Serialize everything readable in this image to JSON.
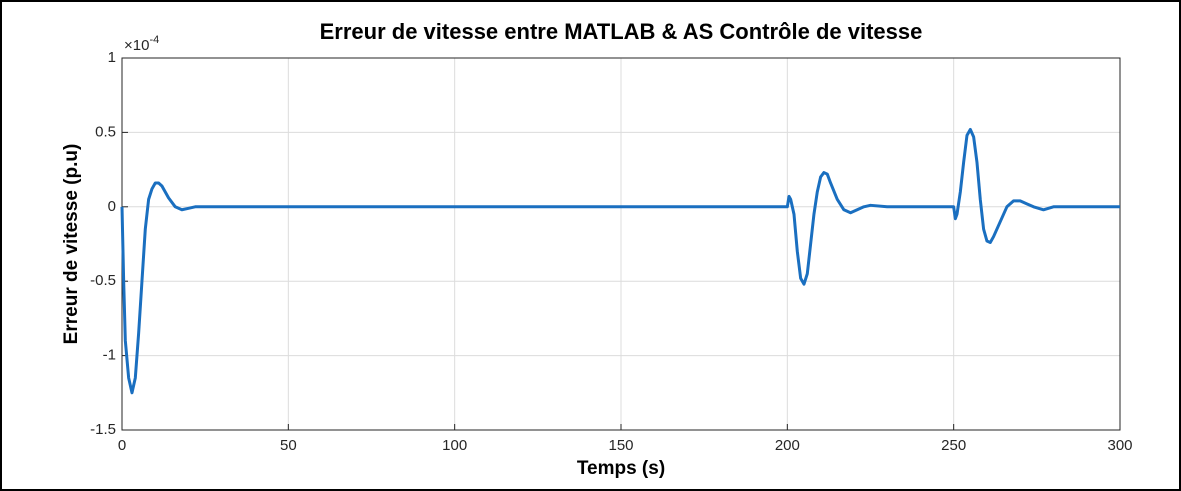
{
  "chart_data": {
    "type": "line",
    "title": "Erreur de vitesse entre MATLAB & AS Contrôle de vitesse",
    "x_label": "Temps (s)",
    "y_label": "Erreur de vitesse (p.u)",
    "y_multiplier": {
      "base": "×10",
      "power": "-4"
    },
    "xlim": [
      0,
      300
    ],
    "xticks": [
      0,
      50,
      100,
      150,
      200,
      250,
      300
    ],
    "ylim": [
      -1.5,
      1
    ],
    "yticks": [
      -1.5,
      -1,
      -0.5,
      0,
      0.5,
      1
    ],
    "grid": true,
    "series": [
      {
        "color": "#1a6fc0",
        "x": [
          0,
          0.5,
          1,
          2,
          3,
          4,
          5,
          6,
          7,
          8,
          9,
          10,
          11,
          12,
          14,
          16,
          18,
          20,
          22,
          200,
          200.5,
          201,
          202,
          203,
          204,
          205,
          206,
          207,
          208,
          209,
          210,
          211,
          212,
          213,
          215,
          217,
          219,
          221,
          223,
          225,
          230,
          250,
          250.5,
          251,
          252,
          253,
          254,
          255,
          256,
          257,
          258,
          259,
          260,
          261,
          262,
          264,
          266,
          268,
          270,
          272,
          274,
          277,
          280,
          300
        ],
        "values": [
          0,
          -0.5,
          -0.9,
          -1.15,
          -1.25,
          -1.15,
          -0.85,
          -0.5,
          -0.15,
          0.05,
          0.12,
          0.16,
          0.16,
          0.14,
          0.06,
          0,
          -0.02,
          -0.01,
          0,
          0,
          0.07,
          0.05,
          -0.05,
          -0.3,
          -0.48,
          -0.52,
          -0.45,
          -0.25,
          -0.05,
          0.1,
          0.2,
          0.23,
          0.22,
          0.16,
          0.05,
          -0.02,
          -0.04,
          -0.02,
          0,
          0.01,
          0,
          0,
          -0.08,
          -0.05,
          0.1,
          0.3,
          0.48,
          0.52,
          0.47,
          0.3,
          0.05,
          -0.15,
          -0.23,
          -0.24,
          -0.2,
          -0.1,
          0,
          0.04,
          0.04,
          0.02,
          0,
          -0.02,
          0,
          0
        ]
      }
    ]
  }
}
